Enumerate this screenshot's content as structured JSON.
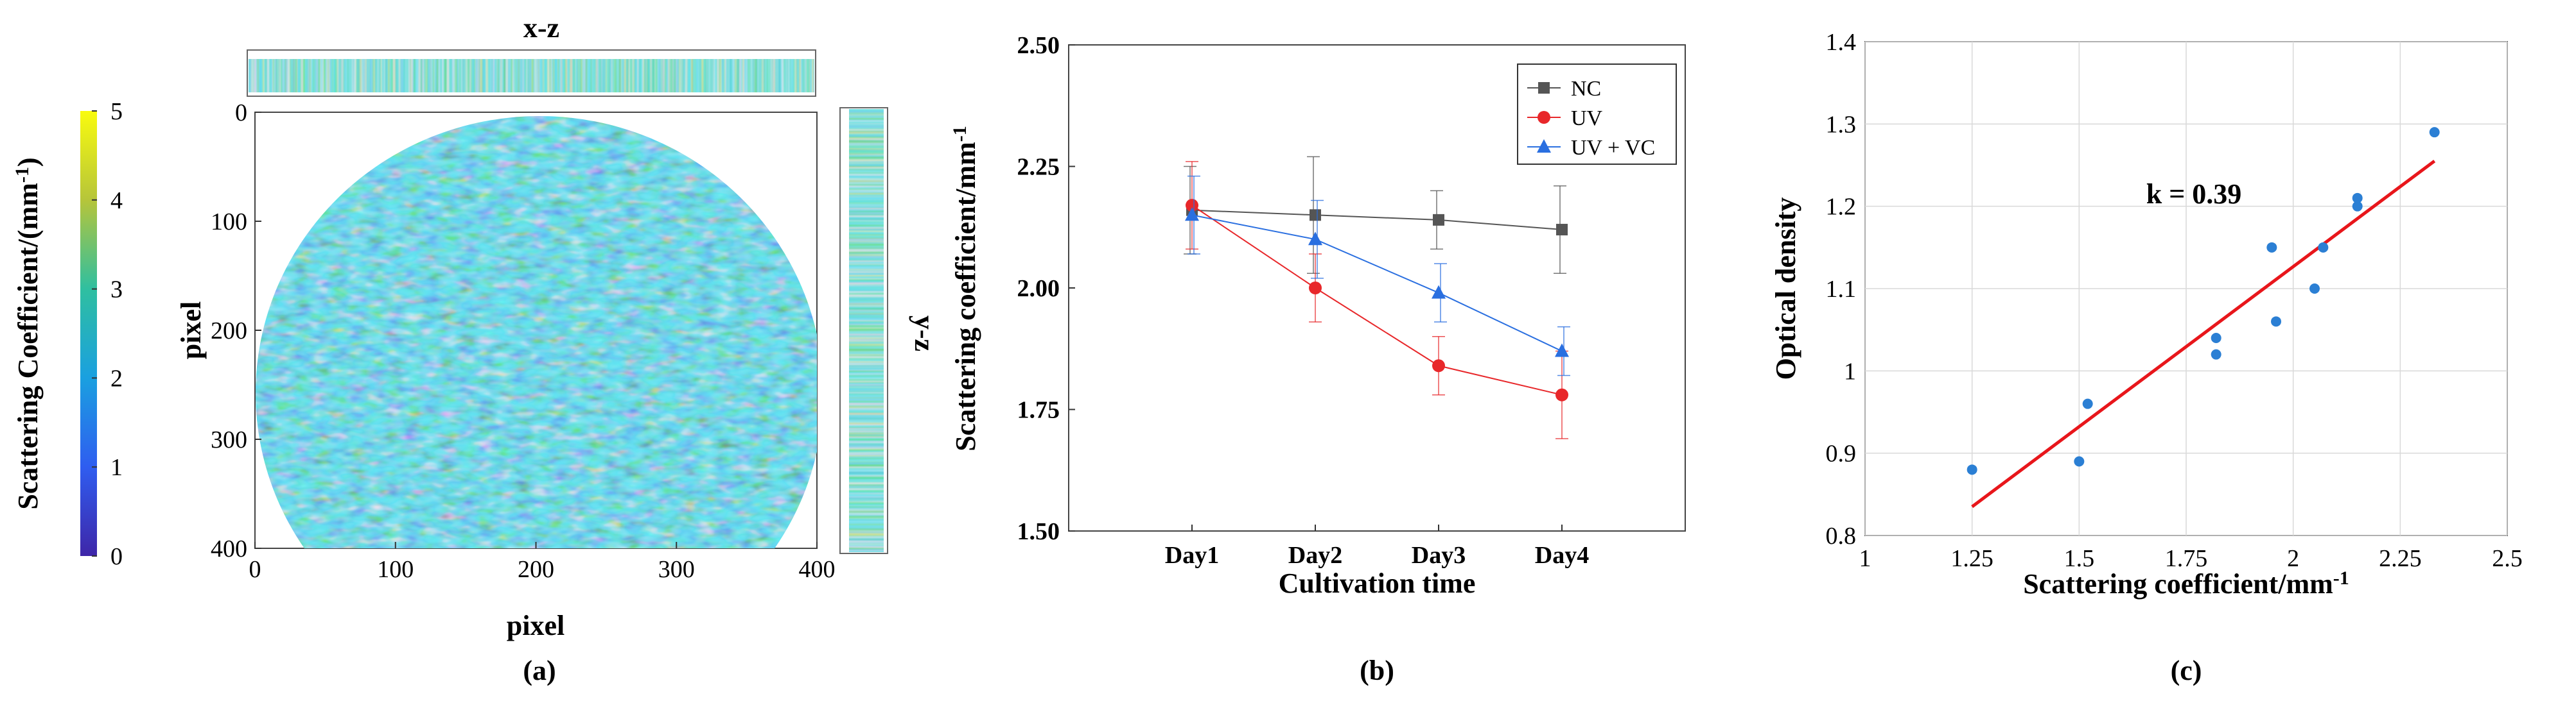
{
  "panel_labels": [
    "(a)",
    "(b)",
    "(c)"
  ],
  "chart_data": [
    {
      "type": "heatmap",
      "panel": "(a)",
      "title": "x-z",
      "side_title": "y-z",
      "xlabel": "pixel",
      "ylabel": "pixel",
      "xticks": [
        "0",
        "100",
        "200",
        "300",
        "400"
      ],
      "yticks": [
        "0",
        "100",
        "200",
        "300",
        "400"
      ],
      "xlim": [
        0,
        400
      ],
      "ylim": [
        0,
        400
      ],
      "colorbar": {
        "label": "Scattering Coefficient/(mm",
        "label_sup": "-1",
        "label_end": ")",
        "range": [
          0,
          5
        ],
        "ticks": [
          "0",
          "1",
          "2",
          "3",
          "4",
          "5"
        ]
      },
      "colors": {
        "low": "#3e26a8",
        "mid1": "#2a8de8",
        "mid2": "#1cb9c7",
        "mid3": "#3ec48b",
        "high": "#f9fb0e"
      }
    },
    {
      "type": "line",
      "panel": "(b)",
      "categories": [
        "Day1",
        "Day2",
        "Day3",
        "Day4"
      ],
      "xlabel": "Cultivation time",
      "ylabel": "Scattering coefficient/mm",
      "ylabel_sup": "-1",
      "ylim": [
        1.5,
        2.5
      ],
      "yticks": [
        "1.50",
        "1.75",
        "2.00",
        "2.25",
        "2.50"
      ],
      "series": [
        {
          "name": "NC",
          "values": [
            2.16,
            2.15,
            2.14,
            2.12
          ],
          "errors": [
            0.09,
            0.12,
            0.06,
            0.09
          ],
          "color": "#555555",
          "marker": "square"
        },
        {
          "name": "UV",
          "values": [
            2.17,
            2.0,
            1.84,
            1.78
          ],
          "errors": [
            0.09,
            0.07,
            0.06,
            0.09
          ],
          "color": "#e8272a",
          "marker": "circle"
        },
        {
          "name": "UV + VC",
          "values": [
            2.15,
            2.1,
            1.99,
            1.87
          ],
          "errors": [
            0.08,
            0.08,
            0.06,
            0.05
          ],
          "color": "#2a6fe0",
          "marker": "triangle"
        }
      ]
    },
    {
      "type": "scatter",
      "panel": "(c)",
      "xlabel": "Scattering coefficient/mm",
      "xlabel_sup": "-1",
      "ylabel": "Optical density",
      "xlim": [
        1,
        2.5
      ],
      "ylim": [
        0.8,
        1.4
      ],
      "xticks": [
        "1",
        "1.25",
        "1.5",
        "1.75",
        "2",
        "2.25",
        "2.5"
      ],
      "yticks": [
        "0.8",
        "0.9",
        "1",
        "1.1",
        "1.2",
        "1.3",
        "1.4"
      ],
      "annotation": "k = 0.39",
      "points": [
        {
          "x": 1.25,
          "y": 0.88
        },
        {
          "x": 1.5,
          "y": 0.89
        },
        {
          "x": 1.52,
          "y": 0.96
        },
        {
          "x": 1.82,
          "y": 1.02
        },
        {
          "x": 1.82,
          "y": 1.04
        },
        {
          "x": 1.95,
          "y": 1.15
        },
        {
          "x": 1.96,
          "y": 1.06
        },
        {
          "x": 2.05,
          "y": 1.1
        },
        {
          "x": 2.07,
          "y": 1.15
        },
        {
          "x": 2.15,
          "y": 1.2
        },
        {
          "x": 2.15,
          "y": 1.21
        },
        {
          "x": 2.33,
          "y": 1.29
        }
      ],
      "fit_line": {
        "x": [
          1.25,
          2.33
        ],
        "y": [
          0.835,
          1.255
        ],
        "color": "#e8161b"
      },
      "point_color": "#2b7fd4"
    }
  ]
}
